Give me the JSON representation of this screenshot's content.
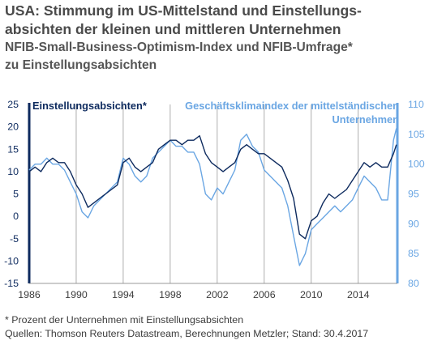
{
  "titles": {
    "line1": "USA: Stimmung im US-Mittelstand und Einstellungs-",
    "line2": "absichten der kleinen und mittleren Unternehmen",
    "line3": "NFIB-Small-Business-Optimism-Index und NFIB-Umfrage*",
    "line4": "zu Einstellungsabsichten"
  },
  "footnotes": {
    "note": "* Prozent der Unternehmen mit Einstellungsabsichten",
    "source": "Quellen: Thomson Reuters Datastream, Berechnungen Metzler; Stand: 30.4.2017"
  },
  "colors": {
    "dark": "#0d2a5e",
    "light": "#6aa6e3",
    "grid": "#9a9a9a"
  },
  "chart_data": {
    "type": "line",
    "x_ticks": [
      "1986",
      "1990",
      "1994",
      "1998",
      "2002",
      "2006",
      "2010",
      "2014"
    ],
    "x_range": [
      1986,
      2017.33
    ],
    "left_axis": {
      "ticks": [
        "25",
        "20",
        "15",
        "10",
        "5",
        "0",
        "-5",
        "-10",
        "-15"
      ],
      "range": [
        -15,
        25
      ]
    },
    "right_axis": {
      "ticks": [
        "110",
        "105",
        "100",
        "95",
        "90",
        "85",
        "80"
      ],
      "range": [
        80,
        110
      ]
    },
    "series": [
      {
        "name": "Einstellungsabsichten*",
        "axis": "left",
        "color": "#0d2a5e",
        "x": [
          1986,
          1986.5,
          1987,
          1987.5,
          1988,
          1988.5,
          1989,
          1989.5,
          1990,
          1990.5,
          1991,
          1991.5,
          1992,
          1992.5,
          1993,
          1993.5,
          1994,
          1994.5,
          1995,
          1995.5,
          1996,
          1996.5,
          1997,
          1997.5,
          1998,
          1998.5,
          1999,
          1999.5,
          2000,
          2000.5,
          2001,
          2001.5,
          2002,
          2002.5,
          2003,
          2003.5,
          2004,
          2004.5,
          2005,
          2005.5,
          2006,
          2006.5,
          2007,
          2007.5,
          2008,
          2008.5,
          2009,
          2009.5,
          2010,
          2010.5,
          2011,
          2011.5,
          2012,
          2012.5,
          2013,
          2013.5,
          2014,
          2014.5,
          2015,
          2015.5,
          2016,
          2016.5,
          2017,
          2017.25
        ],
        "y": [
          10,
          11,
          10,
          12,
          13,
          12,
          12,
          10,
          7,
          5,
          2,
          3,
          4,
          5,
          6,
          7,
          12,
          13,
          11,
          10,
          11,
          12,
          15,
          16,
          17,
          17,
          16,
          17,
          17,
          18,
          14,
          12,
          11,
          10,
          11,
          12,
          15,
          16,
          15,
          14,
          14,
          13,
          12,
          11,
          8,
          4,
          -4,
          -5,
          -1,
          0,
          3,
          5,
          4,
          5,
          6,
          8,
          10,
          12,
          11,
          12,
          11,
          11,
          14,
          16
        ]
      },
      {
        "name": "Geschäftsklimaindex der mittelständischen Unternehmen",
        "axis": "right",
        "color": "#6aa6e3",
        "x": [
          1986,
          1986.5,
          1987,
          1987.5,
          1988,
          1988.5,
          1989,
          1989.5,
          1990,
          1990.5,
          1991,
          1991.5,
          1992,
          1992.5,
          1993,
          1993.5,
          1994,
          1994.5,
          1995,
          1995.5,
          1996,
          1996.5,
          1997,
          1997.5,
          1998,
          1998.5,
          1999,
          1999.5,
          2000,
          2000.5,
          2001,
          2001.5,
          2002,
          2002.5,
          2003,
          2003.5,
          2004,
          2004.5,
          2005,
          2005.5,
          2006,
          2006.5,
          2007,
          2007.5,
          2008,
          2008.5,
          2009,
          2009.5,
          2010,
          2010.5,
          2011,
          2011.5,
          2012,
          2012.5,
          2013,
          2013.5,
          2014,
          2014.5,
          2015,
          2015.5,
          2016,
          2016.5,
          2017,
          2017.25
        ],
        "y": [
          99,
          100,
          100,
          101,
          100,
          100,
          99,
          97,
          95,
          92,
          91,
          93,
          94,
          95,
          96,
          97,
          101,
          100,
          98,
          97,
          98,
          101,
          102,
          103,
          104,
          103,
          103,
          102,
          102,
          100,
          95,
          94,
          96,
          95,
          97,
          99,
          104,
          105,
          103,
          102,
          99,
          98,
          97,
          96,
          93,
          88,
          83,
          85,
          89,
          90,
          91,
          92,
          93,
          92,
          93,
          94,
          96,
          98,
          97,
          96,
          94,
          94,
          104,
          106
        ]
      }
    ]
  }
}
